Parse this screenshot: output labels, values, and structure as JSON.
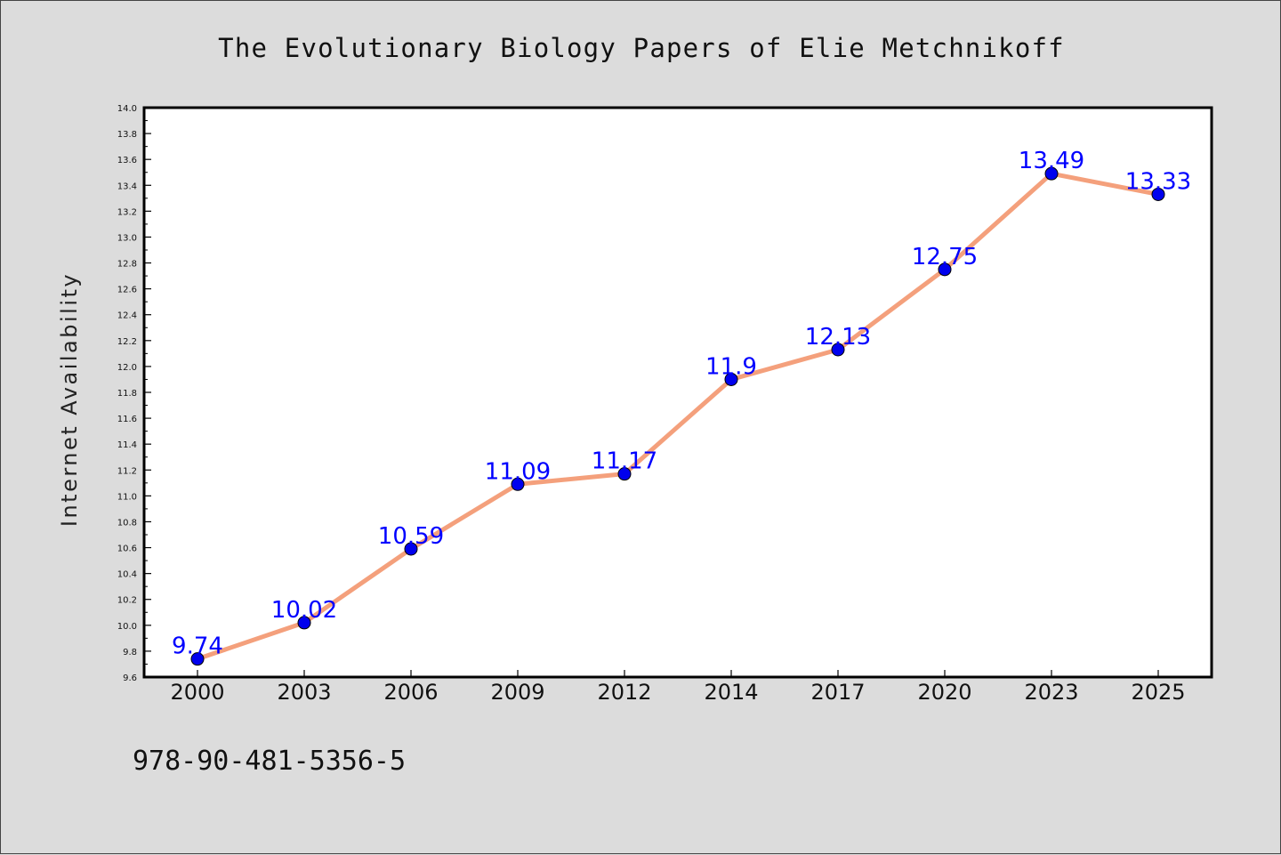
{
  "chart_data": {
    "type": "line",
    "title": "The Evolutionary Biology Papers of Elie Metchnikoff",
    "ylabel": "Internet Availability",
    "xlabel": "",
    "categories": [
      "2000",
      "2003",
      "2006",
      "2009",
      "2012",
      "2014",
      "2017",
      "2020",
      "2023",
      "2025"
    ],
    "series": [
      {
        "values": [
          9.74,
          10.02,
          10.59,
          11.09,
          11.17,
          11.9,
          12.13,
          12.75,
          13.49,
          13.33
        ],
        "labels": [
          "9.74",
          "10.02",
          "10.59",
          "11.09",
          "11.17",
          "11.9",
          "12.13",
          "12.75",
          "13.49",
          "13.33"
        ]
      }
    ],
    "ylim": [
      9.6,
      14.0
    ],
    "yticks": [
      "9.6",
      "9.8",
      "10.0",
      "10.2",
      "10.4",
      "10.6",
      "10.8",
      "11.0",
      "11.2",
      "11.4",
      "11.6",
      "11.8",
      "12.0",
      "12.2",
      "12.4",
      "12.6",
      "12.8",
      "13.0",
      "13.2",
      "13.4",
      "13.6",
      "13.8",
      "14.0"
    ],
    "grid": false,
    "line_color": "#f4a07c",
    "marker_color": "#0000ee",
    "label_color": "#0000ff"
  },
  "footer": {
    "isbn": "978-90-481-5356-5"
  }
}
